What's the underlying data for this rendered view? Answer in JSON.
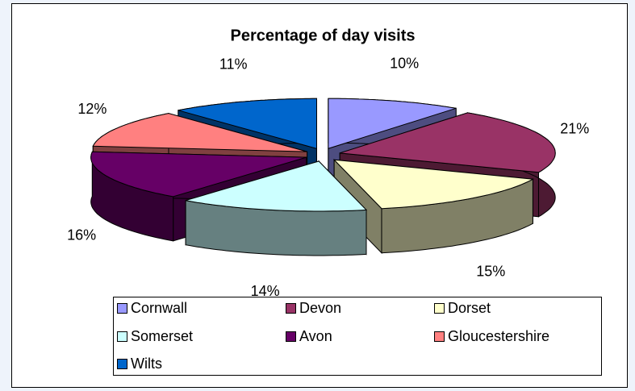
{
  "chart_data": {
    "type": "pie3d",
    "title": "Percentage of day visits",
    "categories": [
      "Cornwall",
      "Devon",
      "Dorset",
      "Somerset",
      "Avon",
      "Gloucestershire",
      "Wilts"
    ],
    "values": [
      10,
      21,
      15,
      14,
      16,
      12,
      11
    ],
    "value_labels": [
      "10%",
      "21%",
      "15%",
      "14%",
      "16%",
      "12%",
      "11%"
    ],
    "colors": [
      "#9999ff",
      "#993366",
      "#ffffcc",
      "#ccffff",
      "#660066",
      "#ff8080",
      "#0066cc"
    ],
    "legend": "bottom"
  }
}
